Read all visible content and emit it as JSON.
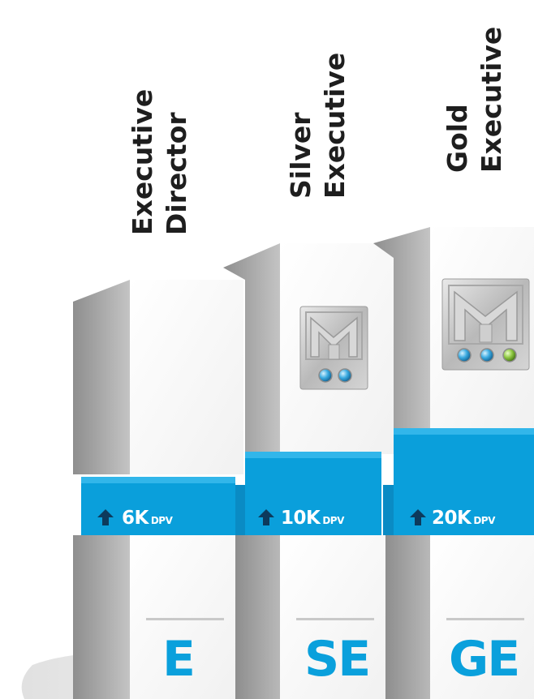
{
  "colors": {
    "accent_blue": "#0aa0dc",
    "title_text": "#1e1e1e",
    "arrow": "#0d3a5c"
  },
  "tiers": [
    {
      "title_line1": "Executive",
      "title_line2": "Director",
      "dpv_value": "6K",
      "dpv_unit": "DPV",
      "code": "E",
      "pin_stones": []
    },
    {
      "title_line1": "Silver",
      "title_line2": "Executive",
      "dpv_value": "10K",
      "dpv_unit": "DPV",
      "code": "SE",
      "pin_stones": [
        "blue",
        "blue"
      ]
    },
    {
      "title_line1": "Gold",
      "title_line2": "Executive",
      "dpv_value": "20K",
      "dpv_unit": "DPV",
      "code": "GE",
      "pin_stones": [
        "blue",
        "blue",
        "green"
      ]
    }
  ]
}
